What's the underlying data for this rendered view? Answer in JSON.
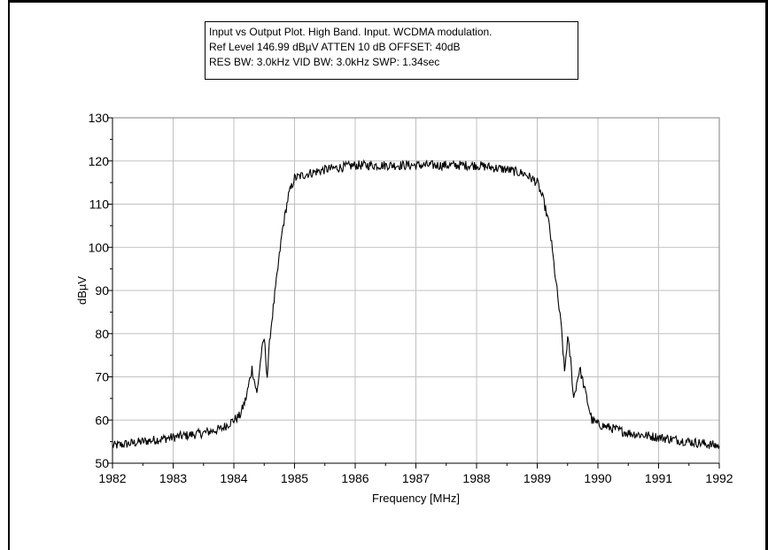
{
  "info_box": {
    "line1": "Input vs Output Plot.  High Band.  Input.  WCDMA modulation.",
    "line2": "Ref Level 146.99 dBµV    ATTEN 10 dB    OFFSET: 40dB",
    "line3": "RES BW: 3.0kHz  VID BW: 3.0kHz  SWP: 1.34sec"
  },
  "chart_data": {
    "type": "line",
    "title": "",
    "xlabel": "Frequency [MHz]",
    "ylabel": "dBµV",
    "xlim": [
      1982,
      1992
    ],
    "ylim": [
      50,
      130
    ],
    "x_ticks": [
      "1982",
      "1983",
      "1984",
      "1985",
      "1986",
      "1987",
      "1988",
      "1989",
      "1990",
      "1991",
      "1992"
    ],
    "y_ticks": [
      "50",
      "60",
      "70",
      "80",
      "90",
      "100",
      "110",
      "120",
      "130"
    ],
    "grid": true,
    "line_color": "#000000",
    "grid_color": "#c0c0c0",
    "series": [
      {
        "x": [
          1982.0,
          1982.5,
          1983.0,
          1983.5,
          1983.8,
          1984.0,
          1984.1,
          1984.2,
          1984.3,
          1984.38,
          1984.45,
          1984.5,
          1984.55,
          1984.6,
          1984.7,
          1984.8,
          1984.9,
          1985.0,
          1985.2,
          1985.5,
          1986.0,
          1986.5,
          1987.0,
          1987.5,
          1988.0,
          1988.5,
          1988.8,
          1989.0,
          1989.1,
          1989.2,
          1989.3,
          1989.4,
          1989.45,
          1989.5,
          1989.55,
          1989.6,
          1989.7,
          1989.75,
          1989.8,
          1989.9,
          1990.0,
          1990.5,
          1991.0,
          1991.5,
          1992.0
        ],
        "y": [
          54,
          55,
          56,
          57,
          58,
          60,
          61,
          65,
          72,
          66,
          75,
          79,
          70,
          80,
          92,
          104,
          112,
          116,
          117,
          118,
          119,
          119,
          119,
          119,
          119,
          118,
          117,
          115,
          111,
          105,
          93,
          81,
          71,
          79,
          74,
          65,
          72,
          69,
          66,
          60,
          59,
          57,
          56,
          55,
          54
        ]
      }
    ]
  }
}
